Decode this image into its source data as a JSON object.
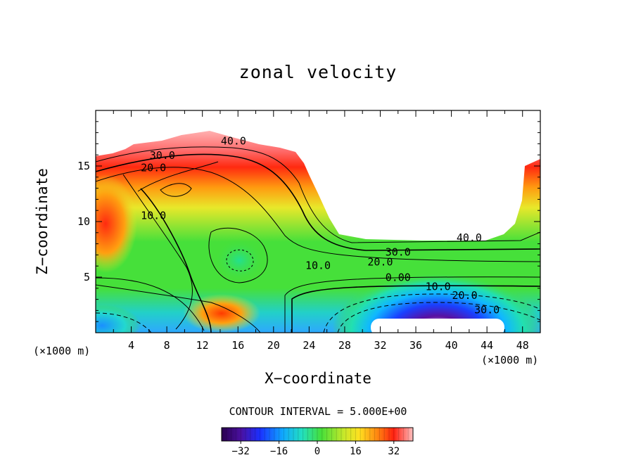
{
  "chart_data": {
    "type": "contour",
    "title": "zonal velocity",
    "xlabel": "X−coordinate",
    "ylabel": "Z−coordinate",
    "x_units": "(×1000 m)",
    "z_units": "(×1000 m)",
    "xlim": [
      0,
      50
    ],
    "ylim": [
      0,
      20
    ],
    "x_ticks": [
      4,
      8,
      12,
      16,
      20,
      24,
      28,
      32,
      36,
      40,
      44,
      48
    ],
    "y_ticks": [
      5,
      10,
      15
    ],
    "contour_interval_text": "CONTOUR INTERVAL = 5.000E+00",
    "contour_labels": [
      {
        "text": "40.0",
        "x": 15.5,
        "z": 17.0
      },
      {
        "text": "30.0",
        "x": 7.5,
        "z": 15.7
      },
      {
        "text": "20.0",
        "x": 6.5,
        "z": 14.6
      },
      {
        "text": "10.0",
        "x": 6.5,
        "z": 10.3
      },
      {
        "text": "10.0",
        "x": 25.0,
        "z": 5.8
      },
      {
        "text": "40.0",
        "x": 42.0,
        "z": 8.3
      },
      {
        "text": "30.0",
        "x": 34.0,
        "z": 7.0
      },
      {
        "text": "20.0",
        "x": 32.0,
        "z": 6.1
      },
      {
        "text": "0.00",
        "x": 34.0,
        "z": 4.7
      },
      {
        "text": "10.0",
        "x": 38.5,
        "z": 3.9
      },
      {
        "text": "20.0",
        "x": 41.5,
        "z": 3.1
      },
      {
        "text": "30.0",
        "x": 44.0,
        "z": 1.8
      }
    ],
    "colorbar": {
      "range": [
        -40,
        40
      ],
      "tick_labels": [
        "−32",
        "−16",
        "0",
        "16",
        "32"
      ],
      "tick_values": [
        -32,
        -16,
        0,
        16,
        32
      ]
    }
  }
}
